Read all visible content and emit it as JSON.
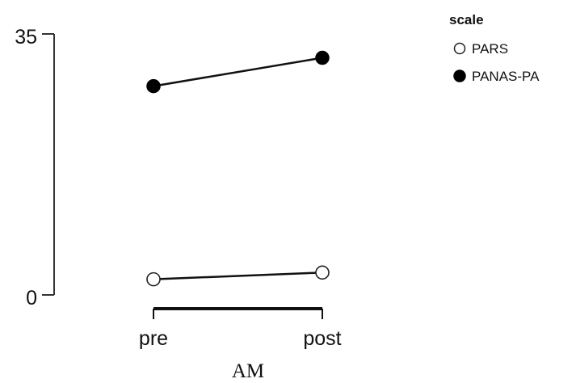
{
  "chart_data": {
    "type": "line",
    "categories": [
      "pre",
      "post"
    ],
    "series": [
      {
        "name": "PARS",
        "values": [
          2.1,
          3.0
        ],
        "marker": "open-circle",
        "color": "#222222"
      },
      {
        "name": "PANAS-PA",
        "values": [
          28.0,
          31.8
        ],
        "marker": "filled-circle",
        "color": "#000000"
      }
    ],
    "xlabel": "AM",
    "ylabel": "",
    "ylim": [
      0,
      35
    ],
    "yticks": [
      "0",
      "35"
    ],
    "legend": {
      "title": "scale",
      "placement": "top-right"
    },
    "grid": false
  }
}
